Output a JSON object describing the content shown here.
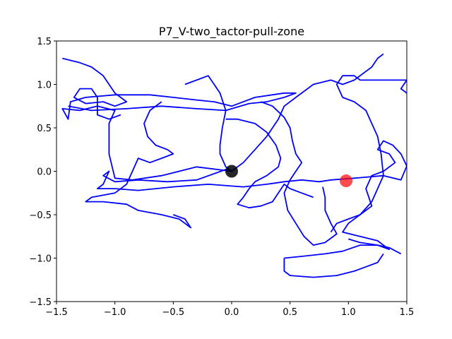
{
  "chart_data": {
    "type": "line",
    "title": "P7_V-two_tactor-pull-zone",
    "xlabel": "",
    "ylabel": "",
    "xlim": [
      -1.5,
      1.5
    ],
    "ylim": [
      -1.5,
      1.5
    ],
    "xticks": [
      "−1.5",
      "−1.0",
      "−0.5",
      "0.0",
      "0.5",
      "1.0",
      "1.5"
    ],
    "yticks": [
      "−1.5",
      "−1.0",
      "−0.5",
      "0.0",
      "0.5",
      "1.0",
      "1.5"
    ],
    "xtick_values": [
      -1.5,
      -1.0,
      -0.5,
      0.0,
      0.5,
      1.0,
      1.5
    ],
    "ytick_values": [
      -1.5,
      -1.0,
      -0.5,
      0.0,
      0.5,
      1.0,
      1.5
    ],
    "grid": false,
    "legend": "none",
    "line_color": "#0000ff",
    "series": [
      {
        "points": [
          [
            0.0,
            0.0
          ],
          [
            -0.05,
            0.02
          ],
          [
            -0.3,
            -0.1
          ],
          [
            -0.55,
            -0.12
          ],
          [
            -0.8,
            -0.1
          ],
          [
            -1.0,
            -0.12
          ],
          [
            -1.1,
            -0.05
          ],
          [
            -1.05,
            0.0
          ],
          [
            -1.1,
            -0.15
          ],
          [
            -1.15,
            -0.2
          ],
          [
            -1.0,
            -0.2
          ],
          [
            -0.8,
            -0.22
          ],
          [
            -0.5,
            -0.18
          ],
          [
            -0.2,
            -0.15
          ],
          [
            0.1,
            -0.18
          ],
          [
            0.3,
            -0.15
          ],
          [
            0.45,
            -0.12
          ],
          [
            0.6,
            -0.1
          ],
          [
            0.75,
            -0.12
          ],
          [
            0.85,
            -0.1
          ],
          [
            1.05,
            -0.08
          ],
          [
            1.3,
            -0.05
          ],
          [
            1.45,
            -0.1
          ],
          [
            1.5,
            0.06
          ]
        ]
      },
      {
        "points": [
          [
            0.0,
            0.0
          ],
          [
            -0.3,
            0.05
          ],
          [
            -0.6,
            -0.05
          ],
          [
            -0.85,
            -0.1
          ],
          [
            -1.0,
            -0.08
          ],
          [
            -1.05,
            0.2
          ],
          [
            -1.05,
            0.55
          ],
          [
            -1.0,
            0.7
          ],
          [
            -1.15,
            0.75
          ],
          [
            -1.3,
            0.7
          ],
          [
            -1.45,
            0.72
          ],
          [
            -1.4,
            0.6
          ],
          [
            -1.38,
            0.8
          ],
          [
            -1.25,
            0.85
          ],
          [
            -1.0,
            0.88
          ],
          [
            -0.7,
            0.88
          ],
          [
            -0.5,
            0.85
          ],
          [
            -0.3,
            0.82
          ],
          [
            -0.15,
            0.8
          ],
          [
            0.0,
            0.75
          ],
          [
            0.2,
            0.85
          ],
          [
            0.45,
            0.9
          ],
          [
            0.55,
            0.9
          ],
          [
            0.45,
            0.85
          ],
          [
            0.3,
            0.8
          ],
          [
            0.15,
            0.78
          ],
          [
            -0.05,
            0.7
          ],
          [
            -0.3,
            0.72
          ],
          [
            -0.6,
            0.75
          ],
          [
            -0.9,
            0.72
          ],
          [
            -1.2,
            0.7
          ],
          [
            -1.4,
            0.75
          ]
        ]
      },
      {
        "points": [
          [
            -1.45,
            1.3
          ],
          [
            -1.3,
            1.25
          ],
          [
            -1.2,
            1.2
          ],
          [
            -1.1,
            1.1
          ],
          [
            -1.05,
            1.0
          ],
          [
            -1.0,
            0.9
          ],
          [
            -0.95,
            0.85
          ],
          [
            -0.9,
            0.8
          ],
          [
            -1.0,
            0.75
          ],
          [
            -1.1,
            0.8
          ],
          [
            -1.25,
            0.78
          ],
          [
            -1.35,
            0.85
          ],
          [
            -1.3,
            0.95
          ],
          [
            -1.2,
            0.95
          ],
          [
            -1.15,
            0.85
          ],
          [
            -1.15,
            0.65
          ],
          [
            -1.05,
            0.6
          ],
          [
            -0.95,
            0.65
          ]
        ]
      },
      {
        "points": [
          [
            -0.6,
            0.8
          ],
          [
            -0.7,
            0.7
          ],
          [
            -0.75,
            0.55
          ],
          [
            -0.72,
            0.4
          ],
          [
            -0.65,
            0.3
          ],
          [
            -0.55,
            0.25
          ],
          [
            -0.5,
            0.2
          ],
          [
            -0.6,
            0.15
          ],
          [
            -0.7,
            0.1
          ],
          [
            -0.8,
            0.15
          ],
          [
            -0.85,
            0.0
          ],
          [
            -0.9,
            -0.15
          ],
          [
            -1.0,
            -0.25
          ],
          [
            -1.2,
            -0.3
          ],
          [
            -1.25,
            -0.35
          ],
          [
            -1.1,
            -0.35
          ],
          [
            -0.9,
            -0.38
          ],
          [
            -0.8,
            -0.45
          ],
          [
            -0.6,
            -0.5
          ],
          [
            -0.45,
            -0.55
          ],
          [
            -0.35,
            -0.65
          ],
          [
            -0.4,
            -0.55
          ],
          [
            -0.5,
            -0.5
          ]
        ]
      },
      {
        "points": [
          [
            -0.4,
            1.0
          ],
          [
            -0.3,
            1.05
          ],
          [
            -0.2,
            1.1
          ],
          [
            -0.15,
            1.0
          ],
          [
            -0.1,
            0.9
          ],
          [
            -0.05,
            0.7
          ],
          [
            -0.08,
            0.5
          ],
          [
            -0.1,
            0.3
          ],
          [
            -0.1,
            0.2
          ],
          [
            -0.05,
            0.05
          ],
          [
            0.0,
            0.0
          ],
          [
            0.1,
            0.1
          ],
          [
            0.2,
            0.25
          ],
          [
            0.3,
            0.4
          ],
          [
            0.4,
            0.6
          ],
          [
            0.45,
            0.75
          ],
          [
            0.55,
            0.85
          ],
          [
            0.7,
            1.0
          ],
          [
            0.85,
            1.05
          ],
          [
            0.95,
            1.0
          ],
          [
            1.05,
            1.05
          ],
          [
            1.1,
            1.1
          ],
          [
            1.2,
            1.2
          ],
          [
            1.25,
            1.3
          ],
          [
            1.3,
            1.35
          ]
        ]
      },
      {
        "points": [
          [
            -0.05,
            0.6
          ],
          [
            0.05,
            0.6
          ],
          [
            0.2,
            0.55
          ],
          [
            0.3,
            0.45
          ],
          [
            0.38,
            0.3
          ],
          [
            0.42,
            0.15
          ],
          [
            0.4,
            0.05
          ],
          [
            0.3,
            -0.05
          ],
          [
            0.2,
            -0.12
          ],
          [
            0.15,
            -0.2
          ],
          [
            0.1,
            -0.3
          ],
          [
            0.05,
            -0.38
          ],
          [
            0.15,
            -0.42
          ],
          [
            0.25,
            -0.4
          ],
          [
            0.35,
            -0.35
          ],
          [
            0.4,
            -0.25
          ],
          [
            0.45,
            -0.15
          ],
          [
            0.5,
            -0.2
          ],
          [
            0.6,
            -0.25
          ],
          [
            0.7,
            -0.3
          ]
        ]
      },
      {
        "points": [
          [
            0.25,
            0.8
          ],
          [
            0.35,
            0.75
          ],
          [
            0.45,
            0.62
          ],
          [
            0.5,
            0.5
          ],
          [
            0.52,
            0.35
          ],
          [
            0.55,
            0.2
          ],
          [
            0.6,
            0.1
          ],
          [
            0.55,
            0.0
          ],
          [
            0.5,
            -0.1
          ],
          [
            0.45,
            -0.25
          ],
          [
            0.48,
            -0.45
          ],
          [
            0.55,
            -0.6
          ],
          [
            0.62,
            -0.75
          ],
          [
            0.7,
            -0.85
          ],
          [
            0.8,
            -0.82
          ],
          [
            0.9,
            -0.72
          ],
          [
            0.85,
            -0.6
          ],
          [
            0.8,
            -0.45
          ],
          [
            0.8,
            -0.3
          ],
          [
            0.78,
            -0.18
          ]
        ]
      },
      {
        "points": [
          [
            1.5,
            0.06
          ],
          [
            1.45,
            0.2
          ],
          [
            1.38,
            0.3
          ],
          [
            1.3,
            0.35
          ],
          [
            1.25,
            0.25
          ],
          [
            1.35,
            0.2
          ],
          [
            1.4,
            0.1
          ],
          [
            1.3,
            0.0
          ],
          [
            1.2,
            -0.05
          ],
          [
            1.15,
            -0.2
          ],
          [
            1.2,
            -0.4
          ],
          [
            1.1,
            -0.5
          ],
          [
            1.0,
            -0.55
          ],
          [
            0.9,
            -0.6
          ],
          [
            0.85,
            -0.7
          ]
        ]
      },
      {
        "points": [
          [
            0.45,
            -1.0
          ],
          [
            0.6,
            -0.98
          ],
          [
            0.8,
            -0.95
          ],
          [
            0.95,
            -0.92
          ],
          [
            1.1,
            -0.85
          ],
          [
            1.25,
            -0.85
          ],
          [
            1.35,
            -0.9
          ],
          [
            1.3,
            -0.85
          ],
          [
            1.25,
            -0.8
          ],
          [
            1.1,
            -0.75
          ],
          [
            0.95,
            -0.7
          ],
          [
            1.0,
            -0.6
          ],
          [
            1.1,
            -0.5
          ],
          [
            1.2,
            -0.35
          ],
          [
            1.25,
            -0.2
          ],
          [
            1.3,
            -0.05
          ],
          [
            1.28,
            0.2
          ],
          [
            1.25,
            0.4
          ],
          [
            1.2,
            0.55
          ],
          [
            1.15,
            0.7
          ],
          [
            1.05,
            0.8
          ],
          [
            0.95,
            0.85
          ],
          [
            0.9,
            1.0
          ],
          [
            0.95,
            1.1
          ],
          [
            1.05,
            1.1
          ],
          [
            1.1,
            1.05
          ],
          [
            1.2,
            1.05
          ],
          [
            1.3,
            1.05
          ],
          [
            1.4,
            1.05
          ],
          [
            1.5,
            1.05
          ],
          [
            1.45,
            0.95
          ],
          [
            1.5,
            0.9
          ]
        ]
      },
      {
        "points": [
          [
            0.45,
            -1.0
          ],
          [
            0.45,
            -1.15
          ],
          [
            0.5,
            -1.2
          ],
          [
            0.7,
            -1.22
          ],
          [
            0.9,
            -1.2
          ],
          [
            1.05,
            -1.15
          ],
          [
            1.15,
            -1.1
          ],
          [
            1.25,
            -1.05
          ],
          [
            1.3,
            -0.95
          ]
        ]
      },
      {
        "points": [
          [
            1.45,
            -0.95
          ],
          [
            1.35,
            -0.88
          ],
          [
            1.25,
            -0.85
          ],
          [
            1.1,
            -0.82
          ],
          [
            1.0,
            -0.78
          ]
        ]
      }
    ],
    "markers": [
      {
        "x": 0.0,
        "y": 0.0,
        "color": "#000000",
        "opacity": 0.85
      },
      {
        "x": 0.98,
        "y": -0.11,
        "color": "#ff0000",
        "opacity": 0.7
      }
    ]
  }
}
